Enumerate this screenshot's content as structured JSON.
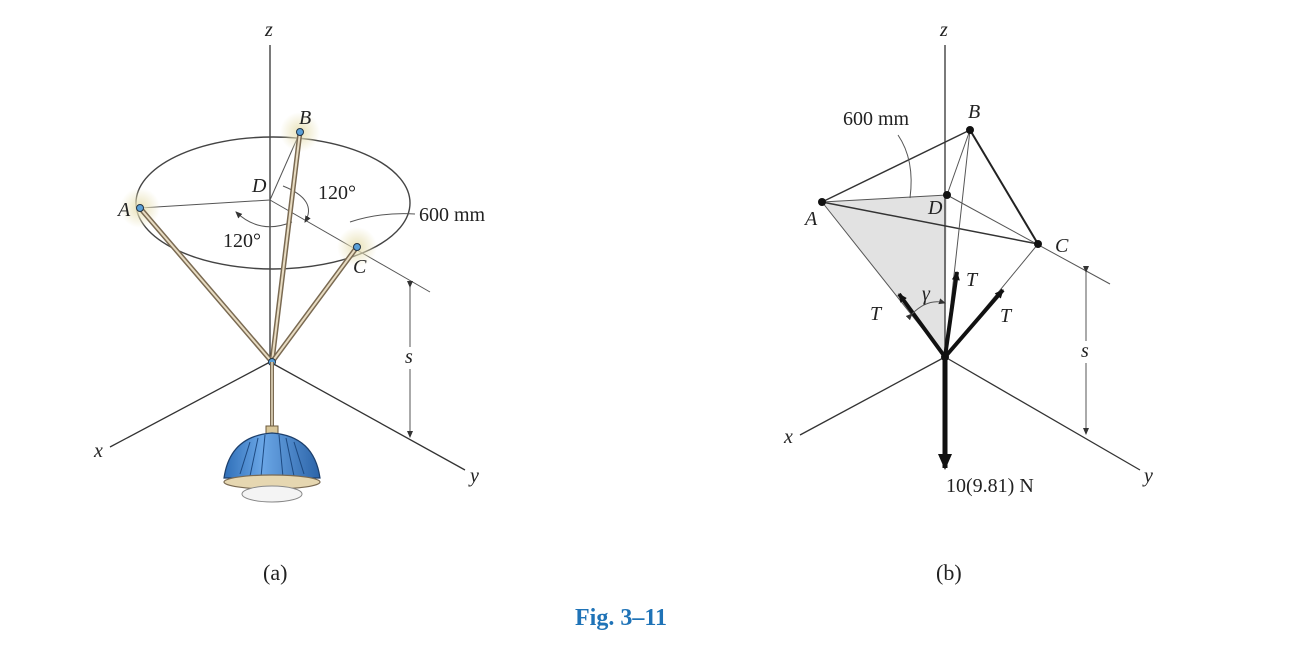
{
  "fig_a": {
    "axis_z": "z",
    "axis_x": "x",
    "axis_y": "y",
    "point_a": "A",
    "point_b": "B",
    "point_c": "C",
    "point_d": "D",
    "angle_1": "120°",
    "angle_2": "120°",
    "radius": "600 mm",
    "distance": "s",
    "caption": "(a)",
    "colors": {
      "lamp_shade": "#4a8fd6",
      "cable": "#7a6a52",
      "highlight": "#e9e2b8"
    }
  },
  "fig_b": {
    "axis_z": "z",
    "axis_x": "x",
    "axis_y": "y",
    "point_a": "A",
    "point_b": "B",
    "point_c": "C",
    "point_d": "D",
    "radius": "600 mm",
    "tension_1": "T",
    "tension_2": "T",
    "tension_3": "T",
    "angle": "γ",
    "distance": "s",
    "weight": "10(9.81) N",
    "caption": "(b)",
    "colors": {
      "shaded_plane": "#e2e2e2"
    }
  },
  "figure_title": "Fig. 3–11"
}
